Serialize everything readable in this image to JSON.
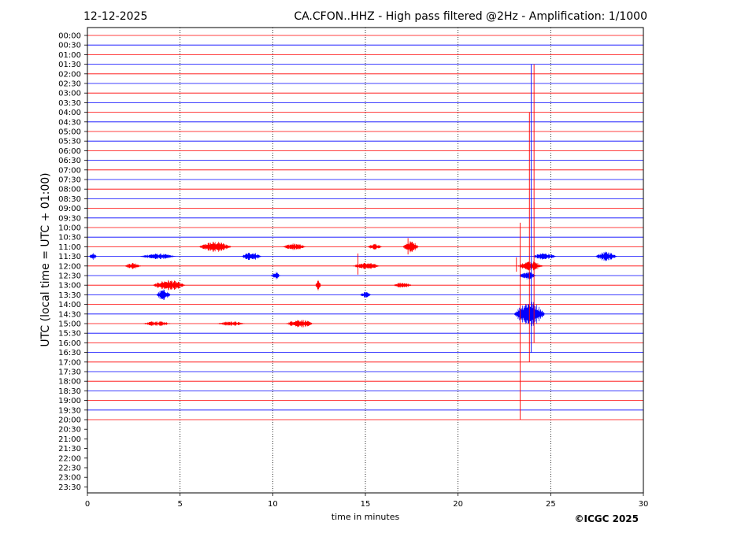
{
  "header": {
    "date": "12-12-2025",
    "title": "CA.CFON..HHZ - High pass filtered @2Hz - Amplification: 1/1000"
  },
  "footer": {
    "copyright": "©ICGC 2025"
  },
  "colors": {
    "even_trace": "#ff0000",
    "odd_trace": "#0000ff",
    "grid": "#000000"
  },
  "chart_data": {
    "type": "line",
    "chart_kind": "helicorder",
    "title": "CA.CFON..HHZ - High pass filtered @2Hz - Amplification: 1/1000",
    "xlabel": "time in minutes",
    "ylabel": "UTC (local time = UTC + 01:00)",
    "xlim": [
      0,
      30
    ],
    "x_ticks": [
      "0",
      "5",
      "10",
      "15",
      "20",
      "25",
      "30"
    ],
    "x_tick_values": [
      0,
      5,
      10,
      15,
      20,
      25,
      30
    ],
    "grid": "vertical dotted at 5-minute ticks",
    "row_labels": [
      "00:00",
      "00:30",
      "01:00",
      "01:30",
      "02:00",
      "02:30",
      "03:00",
      "03:30",
      "04:00",
      "04:30",
      "05:00",
      "05:30",
      "06:00",
      "06:30",
      "07:00",
      "07:30",
      "08:00",
      "08:30",
      "09:00",
      "09:30",
      "10:00",
      "10:30",
      "11:00",
      "11:30",
      "12:00",
      "12:30",
      "13:00",
      "13:30",
      "14:00",
      "14:30",
      "15:00",
      "15:30",
      "16:00",
      "16:30",
      "17:00",
      "17:30",
      "18:00",
      "18:30",
      "19:00",
      "19:30",
      "20:00",
      "20:30",
      "21:00",
      "21:30",
      "22:00",
      "22:30",
      "23:00",
      "23:30"
    ],
    "recorded_through": "20:00",
    "bursts": [
      {
        "row": 22,
        "start_min": 6.0,
        "end_min": 7.8,
        "amp": 0.55
      },
      {
        "row": 22,
        "start_min": 10.5,
        "end_min": 11.8,
        "amp": 0.35
      },
      {
        "row": 22,
        "start_min": 15.1,
        "end_min": 15.9,
        "amp": 0.3
      },
      {
        "row": 22,
        "start_min": 17.0,
        "end_min": 17.9,
        "amp": 0.6
      },
      {
        "row": 23,
        "start_min": 0.1,
        "end_min": 0.5,
        "amp": 0.35
      },
      {
        "row": 23,
        "start_min": 2.8,
        "end_min": 4.8,
        "amp": 0.3
      },
      {
        "row": 23,
        "start_min": 8.3,
        "end_min": 9.4,
        "amp": 0.45
      },
      {
        "row": 23,
        "start_min": 24.0,
        "end_min": 25.3,
        "amp": 0.35
      },
      {
        "row": 23,
        "start_min": 27.4,
        "end_min": 28.6,
        "amp": 0.5
      },
      {
        "row": 24,
        "start_min": 2.0,
        "end_min": 2.9,
        "amp": 0.35
      },
      {
        "row": 24,
        "start_min": 14.3,
        "end_min": 15.8,
        "amp": 0.35
      },
      {
        "row": 24,
        "start_min": 23.2,
        "end_min": 24.6,
        "amp": 0.5
      },
      {
        "row": 25,
        "start_min": 9.9,
        "end_min": 10.4,
        "amp": 0.4
      },
      {
        "row": 25,
        "start_min": 23.3,
        "end_min": 24.2,
        "amp": 0.45
      },
      {
        "row": 26,
        "start_min": 3.5,
        "end_min": 5.3,
        "amp": 0.55
      },
      {
        "row": 26,
        "start_min": 12.3,
        "end_min": 12.6,
        "amp": 0.55
      },
      {
        "row": 26,
        "start_min": 16.5,
        "end_min": 17.5,
        "amp": 0.3
      },
      {
        "row": 27,
        "start_min": 3.7,
        "end_min": 4.5,
        "amp": 0.55
      },
      {
        "row": 27,
        "start_min": 14.7,
        "end_min": 15.3,
        "amp": 0.3
      },
      {
        "row": 29,
        "start_min": 23.0,
        "end_min": 24.7,
        "amp": 1.4
      },
      {
        "row": 30,
        "start_min": 3.0,
        "end_min": 4.5,
        "amp": 0.3
      },
      {
        "row": 30,
        "start_min": 7.0,
        "end_min": 8.5,
        "amp": 0.25
      },
      {
        "row": 30,
        "start_min": 10.7,
        "end_min": 12.2,
        "amp": 0.45
      }
    ],
    "spikes": [
      {
        "row": 22,
        "start_min": 17.3,
        "up": 0.9,
        "down": 0.8
      },
      {
        "row": 24,
        "start_min": 14.6,
        "up": 1.3,
        "down": 0.9
      },
      {
        "row": 24,
        "start_min": 23.15,
        "up": 0.9,
        "down": 0.6
      },
      {
        "row": 28,
        "start_min": 23.35,
        "up": 8.5,
        "down": 12.0
      },
      {
        "row": 26,
        "start_min": 23.85,
        "up": 18.0,
        "down": 8.0
      },
      {
        "row": 27,
        "start_min": 23.95,
        "up": 24.0,
        "down": 6.0
      },
      {
        "row": 26,
        "start_min": 24.1,
        "up": 23.0,
        "down": 6.0
      }
    ]
  }
}
